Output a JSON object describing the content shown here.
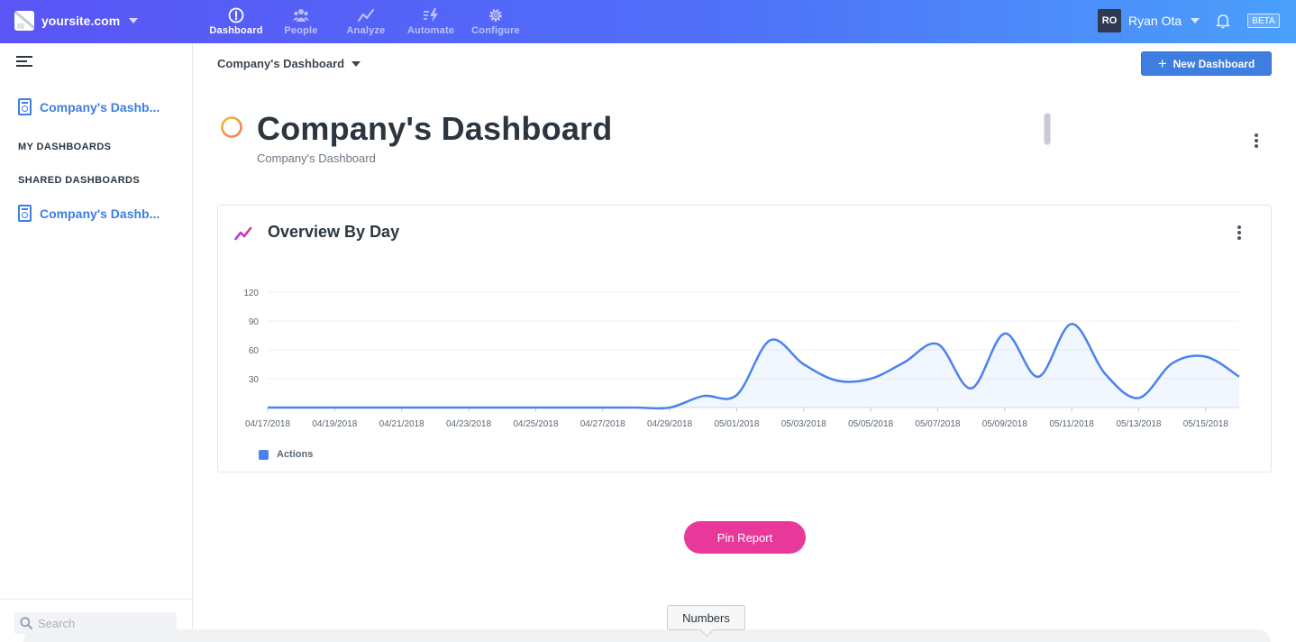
{
  "colors": {
    "accent": "#3d7ee0",
    "pin": "#e8399a",
    "series": "#4a82f0",
    "header_icon": "#f39a4a"
  },
  "topbar": {
    "site": "yoursite.com",
    "nav": [
      {
        "label": "Dashboard",
        "icon": "dashboard-gauge-icon",
        "active": true
      },
      {
        "label": "People",
        "icon": "people-icon",
        "active": false
      },
      {
        "label": "Analyze",
        "icon": "analyze-line-icon",
        "active": false
      },
      {
        "label": "Automate",
        "icon": "automate-bolt-icon",
        "active": false
      },
      {
        "label": "Configure",
        "icon": "gear-icon",
        "active": false
      }
    ],
    "user_initials": "RO",
    "user_name": "Ryan Ota",
    "beta": "BETA"
  },
  "sidebar": {
    "top_item": "Company's Dashb...",
    "my_dashboards_label": "MY DASHBOARDS",
    "shared_dashboards_label": "SHARED DASHBOARDS",
    "shared_item": "Company's Dashb...",
    "search_placeholder": "Search"
  },
  "main": {
    "breadcrumb": "Company's Dashboard",
    "new_dashboard": "New Dashboard",
    "title": "Company's Dashboard",
    "subtitle": "Company's Dashboard",
    "pin_report": "Pin Report",
    "tooltip": "Numbers"
  },
  "card": {
    "title": "Overview By Day"
  },
  "chart_data": {
    "type": "area",
    "title": "Overview By Day",
    "xlabel": "",
    "ylabel": "",
    "ylim": [
      0,
      120
    ],
    "yticks": [
      30,
      60,
      90,
      120
    ],
    "grid": true,
    "legend_placement": "bottom-left",
    "x": [
      "04/17/2018",
      "04/18/2018",
      "04/19/2018",
      "04/20/2018",
      "04/21/2018",
      "04/22/2018",
      "04/23/2018",
      "04/24/2018",
      "04/25/2018",
      "04/26/2018",
      "04/27/2018",
      "04/28/2018",
      "04/29/2018",
      "04/30/2018",
      "05/01/2018",
      "05/02/2018",
      "05/03/2018",
      "05/04/2018",
      "05/05/2018",
      "05/06/2018",
      "05/07/2018",
      "05/08/2018",
      "05/09/2018",
      "05/10/2018",
      "05/11/2018",
      "05/12/2018",
      "05/13/2018",
      "05/14/2018",
      "05/15/2018",
      "05/16/2018"
    ],
    "x_tick_labels": [
      "04/17/2018",
      "04/19/2018",
      "04/21/2018",
      "04/23/2018",
      "04/25/2018",
      "04/27/2018",
      "04/29/2018",
      "05/01/2018",
      "05/03/2018",
      "05/05/2018",
      "05/07/2018",
      "05/09/2018",
      "05/11/2018",
      "05/13/2018",
      "05/15/2018"
    ],
    "series": [
      {
        "name": "Actions",
        "values": [
          0,
          0,
          0,
          0,
          0,
          0,
          0,
          0,
          0,
          0,
          0,
          0,
          0,
          12,
          13,
          70,
          45,
          28,
          30,
          47,
          66,
          20,
          77,
          32,
          87,
          35,
          10,
          46,
          53,
          32
        ]
      }
    ]
  }
}
